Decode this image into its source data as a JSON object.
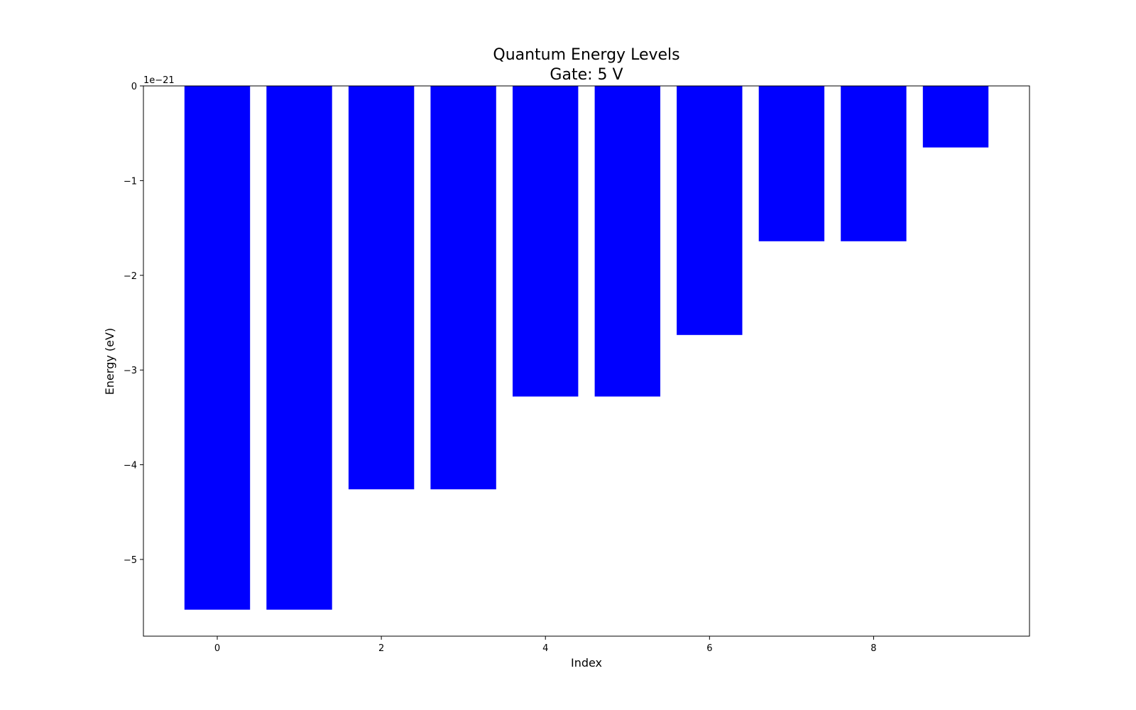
{
  "chart_data": {
    "type": "bar",
    "title_lines": [
      "Quantum Energy Levels",
      "Gate: 5 V"
    ],
    "xlabel": "Index",
    "ylabel": "Energy (eV)",
    "y_offset_label": "1e−21",
    "y_scale_exponent": -21,
    "categories": [
      0,
      1,
      2,
      3,
      4,
      5,
      6,
      7,
      8,
      9
    ],
    "values": [
      -5.53,
      -5.53,
      -4.26,
      -4.26,
      -3.28,
      -3.28,
      -2.63,
      -1.64,
      -1.64,
      -0.65
    ],
    "bar_color": "#0000ff",
    "xlim": [
      -0.9,
      9.9
    ],
    "ylim": [
      -5.81,
      0
    ],
    "xticks": [
      0,
      2,
      4,
      6,
      8
    ],
    "xtick_labels": [
      "0",
      "2",
      "4",
      "6",
      "8"
    ],
    "yticks": [
      0,
      -1,
      -2,
      -3,
      -4,
      -5
    ],
    "ytick_labels": [
      "0",
      "−1",
      "−2",
      "−3",
      "−4",
      "−5"
    ],
    "grid": false,
    "legend": "none"
  }
}
